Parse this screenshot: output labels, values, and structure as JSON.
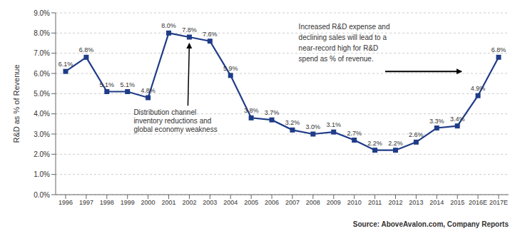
{
  "chart_data": {
    "type": "line",
    "categories": [
      "1996",
      "1997",
      "1998",
      "1999",
      "2000",
      "2001",
      "2002",
      "2003",
      "2004",
      "2005",
      "2006",
      "2007",
      "2008",
      "2009",
      "2010",
      "2011",
      "2012",
      "2013",
      "2014",
      "2015",
      "2016E",
      "2017E"
    ],
    "values": [
      6.1,
      6.8,
      5.1,
      5.1,
      4.8,
      8.0,
      7.8,
      7.6,
      5.9,
      3.8,
      3.7,
      3.2,
      3.0,
      3.1,
      2.7,
      2.2,
      2.2,
      2.6,
      3.3,
      3.4,
      4.9,
      6.8
    ],
    "value_labels": [
      "6.1%",
      "6.8%",
      "5.1%",
      "5.1%",
      "4.8%",
      "8.0%",
      "7.8%",
      "7.6%",
      "5.9%",
      "3.8%",
      "3.7%",
      "3.2%",
      "3.0%",
      "3.1%",
      "2.7%",
      "2.2%",
      "2.2%",
      "2.6%",
      "3.3%",
      "3.4%",
      "4.9%",
      "6.8%"
    ],
    "data_labels": true,
    "color": "#1F3C88",
    "marker": "square",
    "ylabel": "R&D as % of Revenue",
    "ylim": [
      0.0,
      9.0
    ],
    "yticks": [
      {
        "value": 0.0,
        "label": "0.0%"
      },
      {
        "value": 1.0,
        "label": "1.0%"
      },
      {
        "value": 2.0,
        "label": "2.0%"
      },
      {
        "value": 3.0,
        "label": "3.0%"
      },
      {
        "value": 4.0,
        "label": "4.0%"
      },
      {
        "value": 5.0,
        "label": "5.0%"
      },
      {
        "value": 6.0,
        "label": "6.0%"
      },
      {
        "value": 7.0,
        "label": "7.0%"
      },
      {
        "value": 8.0,
        "label": "8.0%"
      },
      {
        "value": 9.0,
        "label": "9.0%"
      }
    ],
    "grid": true,
    "annotations": [
      "Distribution channel\ninventory reductions and\nglobal economy weakness",
      "Increased R&D expense and\ndeclining sales will lead to a\nnear-record high for R&D\nspend as % of revenue."
    ],
    "source": "Source: AboveAvalon.com, Company Reports"
  }
}
